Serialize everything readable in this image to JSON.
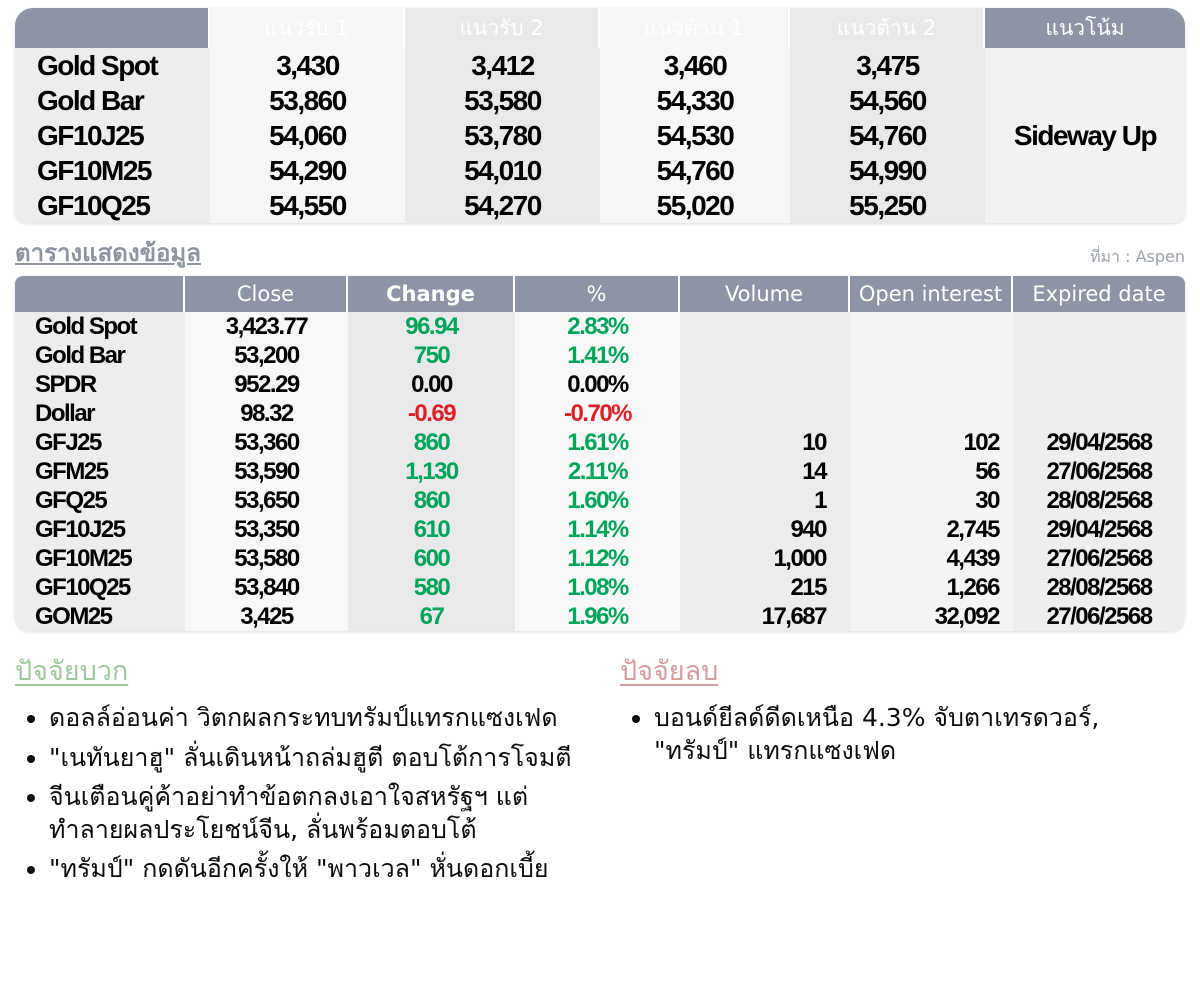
{
  "colors": {
    "header_bg": "#8e93a6",
    "positive_value": "#00a45a",
    "negative_value": "#dc2126",
    "section_title_gray": "#8d93a0",
    "positive_heading": "#9cc89c",
    "negative_heading": "#d69ca0"
  },
  "levels_table": {
    "headers": [
      "",
      "แนวรับ 1",
      "แนวรับ 2",
      "แนวต้าน 1",
      "แนวต้าน 2",
      "แนวโน้ม"
    ],
    "rows": [
      {
        "name": "Gold Spot",
        "values": [
          "3,430",
          "3,412",
          "3,460",
          "3,475"
        ]
      },
      {
        "name": "Gold Bar",
        "values": [
          "53,860",
          "53,580",
          "54,330",
          "54,560"
        ]
      },
      {
        "name": "GF10J25",
        "values": [
          "54,060",
          "53,780",
          "54,530",
          "54,760"
        ]
      },
      {
        "name": "GF10M25",
        "values": [
          "54,290",
          "54,010",
          "54,760",
          "54,990"
        ]
      },
      {
        "name": "GF10Q25",
        "values": [
          "54,550",
          "54,270",
          "55,020",
          "55,250"
        ]
      }
    ],
    "trend": "Sideway Up"
  },
  "data_section": {
    "title": "ตารางแสดงข้อมูล",
    "source": "ที่มา : Aspen"
  },
  "data_table": {
    "headers": [
      "",
      "Close",
      "Change",
      "%",
      "Volume",
      "Open interest",
      "Expired date"
    ],
    "rows": [
      {
        "name": "Gold Spot",
        "close": "3,423.77",
        "change": "96.94",
        "pct": "2.83%",
        "dir": "up",
        "volume": "",
        "oi": "",
        "expired": ""
      },
      {
        "name": "Gold Bar",
        "close": "53,200",
        "change": "750",
        "pct": "1.41%",
        "dir": "up",
        "volume": "",
        "oi": "",
        "expired": ""
      },
      {
        "name": "SPDR",
        "close": "952.29",
        "change": "0.00",
        "pct": "0.00%",
        "dir": "flat",
        "volume": "",
        "oi": "",
        "expired": ""
      },
      {
        "name": "Dollar",
        "close": "98.32",
        "change": "-0.69",
        "pct": "-0.70%",
        "dir": "down",
        "volume": "",
        "oi": "",
        "expired": ""
      },
      {
        "name": "GFJ25",
        "close": "53,360",
        "change": "860",
        "pct": "1.61%",
        "dir": "up",
        "volume": "10",
        "oi": "102",
        "expired": "29/04/2568"
      },
      {
        "name": "GFM25",
        "close": "53,590",
        "change": "1,130",
        "pct": "2.11%",
        "dir": "up",
        "volume": "14",
        "oi": "56",
        "expired": "27/06/2568"
      },
      {
        "name": "GFQ25",
        "close": "53,650",
        "change": "860",
        "pct": "1.60%",
        "dir": "up",
        "volume": "1",
        "oi": "30",
        "expired": "28/08/2568"
      },
      {
        "name": "GF10J25",
        "close": "53,350",
        "change": "610",
        "pct": "1.14%",
        "dir": "up",
        "volume": "940",
        "oi": "2,745",
        "expired": "29/04/2568"
      },
      {
        "name": "GF10M25",
        "close": "53,580",
        "change": "600",
        "pct": "1.12%",
        "dir": "up",
        "volume": "1,000",
        "oi": "4,439",
        "expired": "27/06/2568"
      },
      {
        "name": "GF10Q25",
        "close": "53,840",
        "change": "580",
        "pct": "1.08%",
        "dir": "up",
        "volume": "215",
        "oi": "1,266",
        "expired": "28/08/2568"
      },
      {
        "name": "GOM25",
        "close": "3,425",
        "change": "67",
        "pct": "1.96%",
        "dir": "up",
        "volume": "17,687",
        "oi": "32,092",
        "expired": "27/06/2568"
      }
    ]
  },
  "factors": {
    "positive": {
      "title": "ปัจจัยบวก",
      "items": [
        "ดอลล์อ่อนค่า วิตกผลกระทบทรัมป์แทรกแซงเฟด",
        "\"เนทันยาฮู\" ลั่นเดินหน้าถล่มฮูตี ตอบโต้การโจมตี",
        "จีนเตือนคู่ค้าอย่าทำข้อตกลงเอาใจสหรัฐฯ แต่ทำลายผลประโยชน์จีน, ลั่นพร้อมตอบโต้",
        "\"ทรัมป์\" กดดันอีกครั้งให้ \"พาวเวล\" หั่นดอกเบี้ย"
      ]
    },
    "negative": {
      "title": "ปัจจัยลบ",
      "items": [
        "บอนด์ยีลด์ดีดเหนือ 4.3% จับตาเทรดวอร์, \"ทรัมป์\" แทรกแซงเฟด"
      ]
    }
  }
}
